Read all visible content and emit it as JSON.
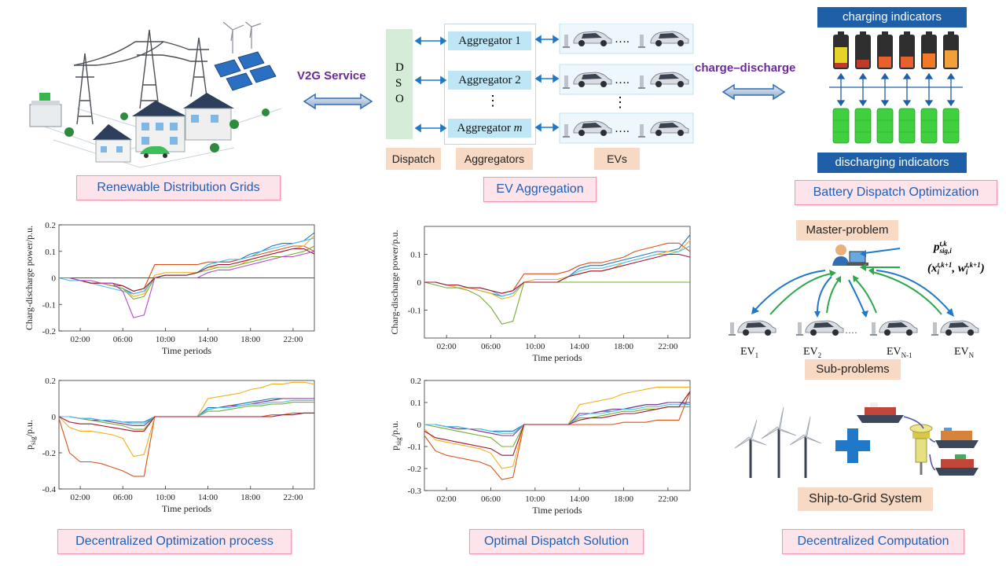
{
  "top": {
    "v2g_label": "V2G Service",
    "charge_discharge_label": "charge–discharge",
    "dso": {
      "d": "D",
      "s": "S",
      "o": "O"
    },
    "aggregators": [
      "Aggregator 1",
      "Aggregator 2",
      "Aggregator "
    ],
    "aggregator_m": "m",
    "vdots": "⋮",
    "hdots": "….",
    "captions": {
      "dispatch": "Dispatch",
      "aggregators": "Aggregators",
      "evs": "EVs"
    },
    "charging_indicators": "charging indicators",
    "discharging_indicators": "discharging indicators"
  },
  "panels": {
    "renewable": "Renewable Distribution Grids",
    "ev_aggregation": "EV Aggregation",
    "battery": "Battery Dispatch Optimization",
    "decentralized_process": "Decentralized Optimization process",
    "optimal_solution": "Optimal Dispatch Solution",
    "decentralized_computation": "Decentralized Computation"
  },
  "right": {
    "master_problem": "Master-problem",
    "sub_problems": "Sub-problems",
    "ship_to_grid": "Ship-to-Grid System",
    "formula1_main": "p",
    "formula1_sub": "sig,i",
    "formula1_sup": "t,k",
    "formula2": "(x",
    "formula2_sub": "i",
    "formula2_sup": "t,k+1",
    "formula2_mid": ", w",
    "formula2_end": ")",
    "ev_labels": [
      {
        "base": "EV",
        "sub": "1"
      },
      {
        "base": "EV",
        "sub": "2"
      },
      {
        "base": "EV",
        "sub": "N-1"
      },
      {
        "base": "EV",
        "sub": "N"
      }
    ],
    "ev_dots": "····"
  },
  "colors": {
    "caption_text": "#1f5fb4",
    "caption_fill": "#fde3ea",
    "purple": "#6a2a9a",
    "band": "#1f5fa8",
    "arrow_green": "#2ca84a",
    "arrow_blue": "#1f78c8"
  },
  "chart_data": [
    {
      "type": "line",
      "id": "tl",
      "xlabel": "Time periods",
      "ylabel": "Charg-discharge power/p.u.",
      "xticks": [
        "02:00",
        "06:00",
        "10:00",
        "14:00",
        "18:00",
        "22:00"
      ],
      "xtick_values": [
        2,
        6,
        10,
        14,
        18,
        22
      ],
      "xlim": [
        0,
        24
      ],
      "ylim": [
        -0.2,
        0.2
      ],
      "yticks": [
        -0.2,
        -0.1,
        0,
        0.1,
        0.2
      ],
      "x": [
        0,
        1,
        2,
        3,
        4,
        5,
        6,
        7,
        8,
        9,
        10,
        11,
        12,
        13,
        14,
        15,
        16,
        17,
        18,
        19,
        20,
        21,
        22,
        23,
        24
      ],
      "series": [
        {
          "color": "#1f77b4",
          "values": [
            0,
            0,
            -0.01,
            -0.02,
            -0.02,
            -0.03,
            -0.04,
            -0.06,
            -0.05,
            0,
            0.01,
            0.01,
            0.01,
            0.02,
            0.05,
            0.06,
            0.06,
            0.07,
            0.09,
            0.1,
            0.12,
            0.13,
            0.13,
            0.14,
            0.17
          ]
        },
        {
          "color": "#d95319",
          "values": [
            0,
            0,
            -0.01,
            -0.02,
            -0.02,
            -0.03,
            -0.03,
            -0.05,
            -0.04,
            0.05,
            0.05,
            0.05,
            0.05,
            0.05,
            0.06,
            0.06,
            0.06,
            0.07,
            0.08,
            0.09,
            0.1,
            0.11,
            0.12,
            0.12,
            0.1
          ]
        },
        {
          "color": "#edb120",
          "values": [
            0,
            0,
            -0.01,
            -0.02,
            -0.02,
            -0.03,
            -0.04,
            -0.07,
            -0.06,
            0.01,
            0.02,
            0.02,
            0.02,
            0.02,
            0.04,
            0.04,
            0.04,
            0.05,
            0.07,
            0.08,
            0.09,
            0.1,
            0.11,
            0.12,
            0.16
          ]
        },
        {
          "color": "#7e2f8e",
          "values": [
            0,
            0,
            0,
            0,
            0,
            0,
            0,
            0,
            0,
            0,
            0,
            0,
            0,
            0,
            0,
            0,
            0,
            0,
            0,
            0,
            0,
            0,
            0,
            0,
            0
          ]
        },
        {
          "color": "#77ac30",
          "values": [
            0,
            0,
            -0.01,
            -0.02,
            -0.02,
            -0.03,
            -0.04,
            -0.08,
            -0.07,
            0,
            0.01,
            0.01,
            0.01,
            0.02,
            0.03,
            0.04,
            0.04,
            0.05,
            0.06,
            0.07,
            0.08,
            0.08,
            0.09,
            0.1,
            0.12
          ]
        },
        {
          "color": "#4dbeee",
          "values": [
            0,
            -0.01,
            -0.01,
            -0.02,
            -0.03,
            -0.04,
            -0.05,
            -0.06,
            -0.05,
            0,
            0.01,
            0.01,
            0.01,
            0.02,
            0.05,
            0.06,
            0.07,
            0.07,
            0.08,
            0.1,
            0.11,
            0.12,
            0.13,
            0.14,
            0.15
          ]
        },
        {
          "color": "#a2142f",
          "values": [
            0,
            0,
            -0.01,
            -0.02,
            -0.02,
            -0.02,
            -0.03,
            -0.05,
            -0.04,
            0,
            0.01,
            0.01,
            0.01,
            0.02,
            0.04,
            0.05,
            0.05,
            0.06,
            0.07,
            0.08,
            0.09,
            0.1,
            0.11,
            0.11,
            0.09
          ]
        },
        {
          "color": "#b44cc8",
          "values": [
            0,
            0,
            -0.01,
            -0.01,
            -0.02,
            -0.02,
            -0.05,
            -0.15,
            -0.14,
            0,
            0,
            0,
            0,
            0,
            0.02,
            0.03,
            0.03,
            0.04,
            0.05,
            0.06,
            0.07,
            0.08,
            0.08,
            0.09,
            0.1
          ]
        }
      ]
    },
    {
      "type": "line",
      "id": "tm",
      "xlabel": "Time periods",
      "ylabel": "Charg-discharge power/p.u.",
      "xticks": [
        "02:00",
        "06:00",
        "10:00",
        "14:00",
        "18:00",
        "22:00"
      ],
      "xtick_values": [
        2,
        6,
        10,
        14,
        18,
        22
      ],
      "xlim": [
        0,
        24
      ],
      "ylim": [
        -0.2,
        0.2
      ],
      "yticks": [
        -0.1,
        0,
        0.1
      ],
      "x": [
        0,
        1,
        2,
        3,
        4,
        5,
        6,
        7,
        8,
        9,
        10,
        11,
        12,
        13,
        14,
        15,
        16,
        17,
        18,
        19,
        20,
        21,
        22,
        23,
        24
      ],
      "series": [
        {
          "color": "#1f77b4",
          "values": [
            0,
            0,
            -0.01,
            -0.01,
            -0.02,
            -0.03,
            -0.04,
            -0.05,
            -0.04,
            0,
            0,
            0,
            0,
            0.02,
            0.05,
            0.06,
            0.06,
            0.07,
            0.08,
            0.09,
            0.1,
            0.11,
            0.11,
            0.12,
            0.17
          ]
        },
        {
          "color": "#d95319",
          "values": [
            0,
            0,
            -0.01,
            -0.01,
            -0.02,
            -0.02,
            -0.03,
            -0.04,
            -0.03,
            0.03,
            0.03,
            0.03,
            0.03,
            0.04,
            0.06,
            0.07,
            0.07,
            0.08,
            0.09,
            0.11,
            0.12,
            0.13,
            0.14,
            0.14,
            0.11
          ]
        },
        {
          "color": "#edb120",
          "values": [
            0,
            0,
            -0.01,
            -0.02,
            -0.02,
            -0.03,
            -0.04,
            -0.06,
            -0.05,
            0,
            0.01,
            0.01,
            0.01,
            0.02,
            0.03,
            0.04,
            0.04,
            0.05,
            0.07,
            0.08,
            0.09,
            0.1,
            0.11,
            0.11,
            0.15
          ]
        },
        {
          "color": "#77ac30",
          "values": [
            0,
            -0.01,
            -0.02,
            -0.02,
            -0.03,
            -0.05,
            -0.09,
            -0.15,
            -0.14,
            0,
            0,
            0,
            0,
            0,
            0,
            0,
            0,
            0,
            0,
            0,
            0,
            0,
            0,
            0,
            0
          ]
        },
        {
          "color": "#4dbeee",
          "values": [
            0,
            0,
            -0.01,
            -0.01,
            -0.02,
            -0.02,
            -0.03,
            -0.05,
            -0.04,
            0,
            0,
            0,
            0,
            0.02,
            0.04,
            0.05,
            0.05,
            0.06,
            0.07,
            0.08,
            0.09,
            0.1,
            0.1,
            0.11,
            0.13
          ]
        },
        {
          "color": "#a2142f",
          "values": [
            0,
            0,
            -0.01,
            -0.01,
            -0.02,
            -0.02,
            -0.03,
            -0.04,
            -0.03,
            0,
            0,
            0,
            0,
            0.02,
            0.03,
            0.04,
            0.04,
            0.05,
            0.06,
            0.07,
            0.08,
            0.09,
            0.1,
            0.1,
            0.09
          ]
        }
      ]
    },
    {
      "type": "line",
      "id": "bl",
      "xlabel": "Time periods",
      "ylabel": "p",
      "ylabel_sub": "sig",
      "ylabel_suffix": "/p.u.",
      "xticks": [
        "02:00",
        "06:00",
        "10:00",
        "14:00",
        "18:00",
        "22:00"
      ],
      "xtick_values": [
        2,
        6,
        10,
        14,
        18,
        22
      ],
      "xlim": [
        0,
        24
      ],
      "ylim": [
        -0.4,
        0.2
      ],
      "yticks": [
        -0.4,
        -0.2,
        0,
        0.2
      ],
      "x": [
        0,
        1,
        2,
        3,
        4,
        5,
        6,
        7,
        8,
        9,
        10,
        11,
        12,
        13,
        14,
        15,
        16,
        17,
        18,
        19,
        20,
        21,
        22,
        23,
        24
      ],
      "series": [
        {
          "color": "#1f77b4",
          "values": [
            0,
            0,
            -0.01,
            -0.01,
            -0.02,
            -0.02,
            -0.03,
            -0.03,
            -0.03,
            0,
            0,
            0,
            0,
            0,
            0.05,
            0.05,
            0.06,
            0.07,
            0.08,
            0.09,
            0.1,
            0.1,
            0.1,
            0.1,
            0.1
          ]
        },
        {
          "color": "#d95319",
          "values": [
            -0.01,
            -0.2,
            -0.25,
            -0.25,
            -0.26,
            -0.28,
            -0.3,
            -0.33,
            -0.33,
            0,
            0,
            0,
            0,
            0,
            0,
            0,
            0,
            0,
            0,
            0,
            0.01,
            0.01,
            0.02,
            0.02,
            0.02
          ]
        },
        {
          "color": "#edb120",
          "values": [
            0,
            -0.06,
            -0.08,
            -0.08,
            -0.09,
            -0.1,
            -0.12,
            -0.22,
            -0.21,
            0,
            0,
            0,
            0,
            0,
            0.1,
            0.11,
            0.12,
            0.13,
            0.15,
            0.16,
            0.18,
            0.18,
            0.19,
            0.19,
            0.18
          ]
        },
        {
          "color": "#7e2f8e",
          "values": [
            0,
            0,
            -0.01,
            -0.02,
            -0.02,
            -0.03,
            -0.04,
            -0.05,
            -0.05,
            0,
            0,
            0,
            0,
            0,
            0.04,
            0.05,
            0.06,
            0.06,
            0.07,
            0.08,
            0.09,
            0.1,
            0.1,
            0.1,
            0.1
          ]
        },
        {
          "color": "#77ac30",
          "values": [
            0,
            0,
            -0.01,
            -0.02,
            -0.03,
            -0.04,
            -0.05,
            -0.07,
            -0.07,
            0,
            0,
            0,
            0,
            0,
            0.03,
            0.03,
            0.04,
            0.05,
            0.06,
            0.06,
            0.07,
            0.07,
            0.08,
            0.08,
            0.08
          ]
        },
        {
          "color": "#4dbeee",
          "values": [
            0,
            0,
            -0.01,
            -0.01,
            -0.02,
            -0.02,
            -0.03,
            -0.04,
            -0.04,
            0,
            0,
            0,
            0,
            0,
            0.04,
            0.05,
            0.05,
            0.06,
            0.07,
            0.07,
            0.08,
            0.08,
            0.09,
            0.09,
            0.09
          ]
        },
        {
          "color": "#a2142f",
          "values": [
            0,
            -0.03,
            -0.04,
            -0.04,
            -0.05,
            -0.06,
            -0.07,
            -0.08,
            -0.08,
            0,
            0,
            0,
            0,
            0,
            0,
            0,
            0,
            0,
            0,
            0,
            0,
            0.01,
            0.01,
            0.02,
            0.02
          ]
        }
      ]
    },
    {
      "type": "line",
      "id": "bm",
      "xlabel": "Time periods",
      "ylabel": "p",
      "ylabel_sub": "sig",
      "ylabel_suffix": "/p.u.",
      "xticks": [
        "02:00",
        "06:00",
        "10:00",
        "14:00",
        "18:00",
        "22:00"
      ],
      "xtick_values": [
        2,
        6,
        10,
        14,
        18,
        22
      ],
      "xlim": [
        0,
        24
      ],
      "ylim": [
        -0.3,
        0.2
      ],
      "yticks": [
        -0.3,
        -0.2,
        -0.1,
        0,
        0.1,
        0.2
      ],
      "x": [
        0,
        1,
        2,
        3,
        4,
        5,
        6,
        7,
        8,
        9,
        10,
        11,
        12,
        13,
        14,
        15,
        16,
        17,
        18,
        19,
        20,
        21,
        22,
        23,
        24
      ],
      "series": [
        {
          "color": "#1f77b4",
          "values": [
            0,
            0,
            -0.01,
            -0.01,
            -0.02,
            -0.02,
            -0.03,
            -0.03,
            -0.03,
            0,
            0,
            0,
            0,
            0,
            0.05,
            0.05,
            0.06,
            0.06,
            0.07,
            0.08,
            0.09,
            0.09,
            0.1,
            0.1,
            0.09
          ]
        },
        {
          "color": "#d95319",
          "values": [
            -0.05,
            -0.12,
            -0.14,
            -0.15,
            -0.16,
            -0.17,
            -0.19,
            -0.25,
            -0.24,
            0,
            0,
            0,
            0,
            0,
            0,
            0,
            0,
            0,
            0.01,
            0.01,
            0.01,
            0.02,
            0.02,
            0.02,
            0.15
          ]
        },
        {
          "color": "#edb120",
          "values": [
            -0.02,
            -0.07,
            -0.08,
            -0.09,
            -0.1,
            -0.11,
            -0.13,
            -0.2,
            -0.19,
            0,
            0,
            0,
            0,
            0,
            0.09,
            0.1,
            0.11,
            0.12,
            0.14,
            0.15,
            0.16,
            0.17,
            0.17,
            0.17,
            0.17
          ]
        },
        {
          "color": "#7e2f8e",
          "values": [
            0,
            0,
            -0.01,
            -0.02,
            -0.02,
            -0.03,
            -0.04,
            -0.05,
            -0.05,
            0,
            0,
            0,
            0,
            0,
            0.05,
            0.05,
            0.06,
            0.07,
            0.07,
            0.08,
            0.09,
            0.09,
            0.1,
            0.1,
            0.1
          ]
        },
        {
          "color": "#77ac30",
          "values": [
            0,
            -0.01,
            -0.02,
            -0.03,
            -0.04,
            -0.05,
            -0.06,
            -0.1,
            -0.1,
            0,
            0,
            0,
            0,
            0,
            0.03,
            0.03,
            0.04,
            0.05,
            0.06,
            0.06,
            0.07,
            0.07,
            0.08,
            0.08,
            0.08
          ]
        },
        {
          "color": "#4dbeee",
          "values": [
            0,
            0,
            -0.01,
            -0.01,
            -0.02,
            -0.02,
            -0.03,
            -0.04,
            -0.04,
            0,
            0,
            0,
            0,
            0,
            0.04,
            0.05,
            0.05,
            0.06,
            0.07,
            0.07,
            0.08,
            0.08,
            0.09,
            0.09,
            0.09
          ]
        },
        {
          "color": "#a2142f",
          "values": [
            -0.03,
            -0.06,
            -0.07,
            -0.08,
            -0.09,
            -0.1,
            -0.11,
            -0.14,
            -0.14,
            0,
            0,
            0,
            0,
            0,
            0.02,
            0.03,
            0.03,
            0.04,
            0.05,
            0.05,
            0.06,
            0.07,
            0.08,
            0.08,
            0.15
          ]
        }
      ]
    }
  ]
}
